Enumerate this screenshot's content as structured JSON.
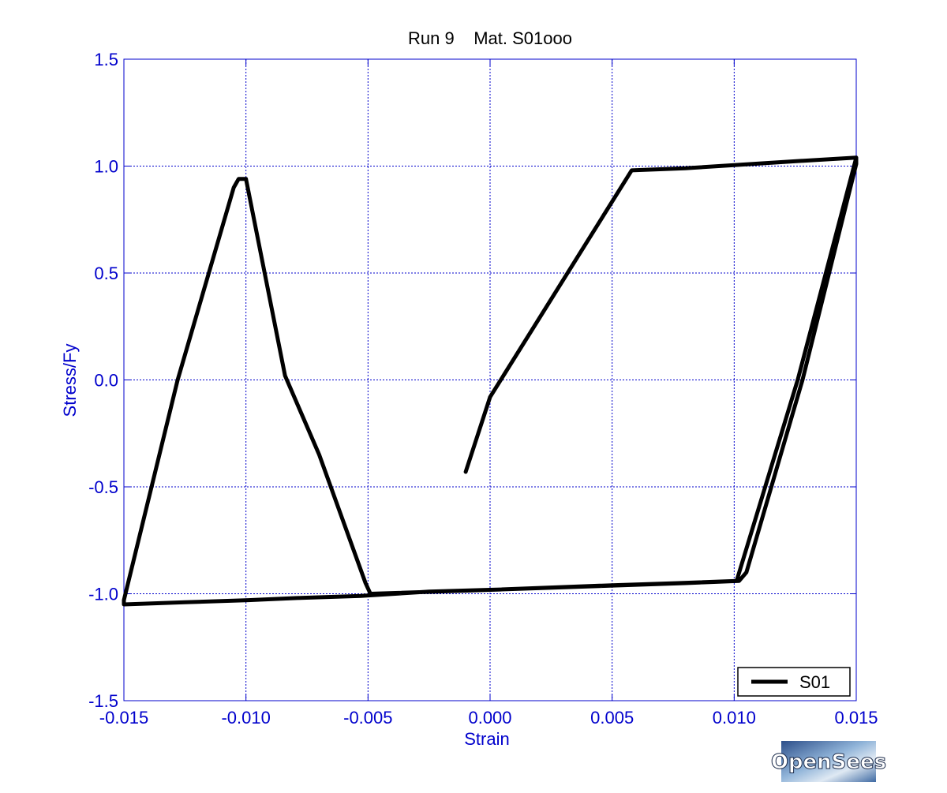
{
  "chart_data": {
    "type": "line",
    "title": "Run 9    Mat. S01ooo",
    "xlabel": "Strain",
    "ylabel": "Stress/Fy",
    "xlim": [
      -0.015,
      0.015
    ],
    "ylim": [
      -1.5,
      1.5
    ],
    "x_ticks": [
      -0.015,
      -0.01,
      -0.005,
      0.0,
      0.005,
      0.01,
      0.015
    ],
    "x_tick_labels": [
      "-0.015",
      "-0.010",
      "-0.005",
      "0.000",
      "0.005",
      "0.010",
      "0.015"
    ],
    "y_ticks": [
      1.5,
      1.0,
      0.5,
      0.0,
      -0.5,
      -1.0,
      -1.5
    ],
    "y_tick_labels": [
      "1.5",
      "1.0",
      "0.5",
      "0.0",
      "-0.5",
      "-1.0",
      "-1.5"
    ],
    "grid": true,
    "legend_position": "bottom-right",
    "series": [
      {
        "name": "S01",
        "color": "#000000",
        "x": [
          -0.001,
          0.0,
          0.0058,
          0.008,
          0.0121,
          0.015,
          0.015,
          0.0128,
          0.0105,
          0.0102,
          0.008,
          0.0054,
          0.0004,
          -0.0049,
          -0.0051,
          -0.007,
          -0.0084,
          -0.01,
          -0.0103,
          -0.0105,
          -0.0128,
          -0.015,
          -0.015,
          -0.0125,
          -0.0099,
          -0.0079,
          -0.0053,
          -0.0025,
          0.0004,
          0.005,
          0.0077,
          0.0101,
          0.0126,
          0.015
        ],
        "y": [
          -0.43,
          -0.08,
          0.98,
          0.99,
          1.02,
          1.04,
          1.01,
          0.0,
          -0.9,
          -0.94,
          -0.95,
          -0.96,
          -0.98,
          -1.0,
          -0.95,
          -0.35,
          0.02,
          0.94,
          0.94,
          0.9,
          0.0,
          -1.03,
          -1.05,
          -1.04,
          -1.03,
          -1.02,
          -1.01,
          -0.99,
          -0.98,
          -0.96,
          -0.95,
          -0.94,
          0.0,
          1.04
        ]
      }
    ]
  },
  "logo": {
    "text": "OpenSees"
  }
}
